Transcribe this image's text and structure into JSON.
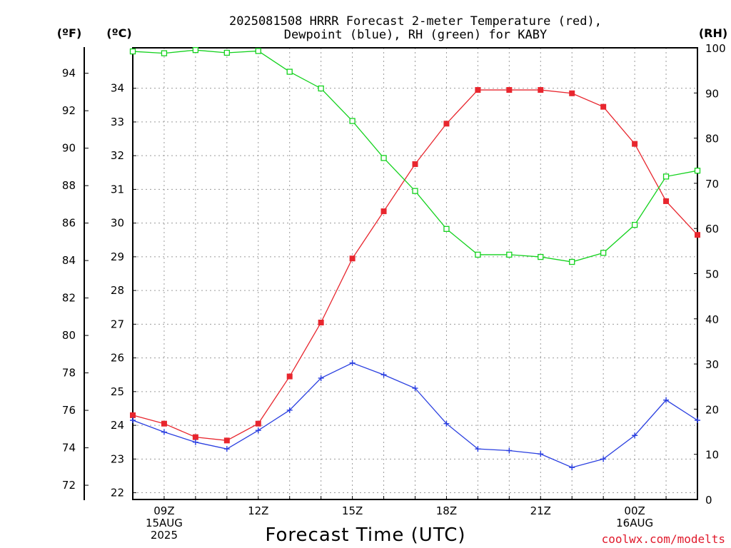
{
  "title": {
    "line1": "2025081508 HRRR Forecast 2-meter Temperature (red),",
    "line2": "Dewpoint (blue), RH (green) for KABY"
  },
  "units": {
    "f": "(ºF)",
    "c": "(ºC)",
    "rh": "(RH)"
  },
  "credit": "coolwx.com/modelts",
  "colors": {
    "temperature": "#e8262e",
    "dewpoint": "#2a3fe0",
    "rh": "#14d21e"
  },
  "chart_data": {
    "type": "line",
    "title": "2025081508 HRRR Forecast 2-meter Temperature (red), Dewpoint (blue), RH (green) for KABY",
    "xlabel": "Forecast Time (UTC)",
    "x": [
      "08Z",
      "09Z",
      "10Z",
      "11Z",
      "12Z",
      "13Z",
      "14Z",
      "15Z",
      "16Z",
      "17Z",
      "18Z",
      "19Z",
      "20Z",
      "21Z",
      "22Z",
      "23Z",
      "00Z",
      "01Z",
      "02Z"
    ],
    "x_ticks": [
      {
        "x": "09Z",
        "lines": [
          "09Z",
          "15AUG",
          "2025"
        ]
      },
      {
        "x": "12Z",
        "lines": [
          "12Z"
        ]
      },
      {
        "x": "15Z",
        "lines": [
          "15Z"
        ]
      },
      {
        "x": "18Z",
        "lines": [
          "18Z"
        ]
      },
      {
        "x": "21Z",
        "lines": [
          "21Z"
        ]
      },
      {
        "x": "00Z",
        "lines": [
          "00Z",
          "16AUG"
        ]
      }
    ],
    "y_left_c": {
      "label": "(ºC)",
      "range": [
        21.8,
        35.2
      ],
      "ticks": [
        22,
        23,
        24,
        25,
        26,
        27,
        28,
        29,
        30,
        31,
        32,
        33,
        34
      ]
    },
    "y_left_f": {
      "label": "(ºF)",
      "ticks": [
        72,
        74,
        76,
        78,
        80,
        82,
        84,
        86,
        88,
        90,
        92,
        94
      ]
    },
    "y_right_rh": {
      "label": "(RH)",
      "range": [
        0,
        100
      ],
      "ticks": [
        0,
        10,
        20,
        30,
        40,
        50,
        60,
        70,
        80,
        90,
        100
      ]
    },
    "grid": true,
    "series": [
      {
        "name": "Temperature",
        "axis": "c",
        "marker": "filled-square",
        "values": [
          24.3,
          24.05,
          23.65,
          23.55,
          24.05,
          25.45,
          27.05,
          28.95,
          30.35,
          31.75,
          32.95,
          33.95,
          33.95,
          33.95,
          33.85,
          33.45,
          32.35,
          30.65,
          29.65
        ]
      },
      {
        "name": "Dewpoint",
        "axis": "c",
        "marker": "plus",
        "values": [
          24.15,
          23.8,
          23.5,
          23.3,
          23.85,
          24.45,
          25.4,
          25.85,
          25.5,
          25.1,
          24.05,
          23.3,
          23.25,
          23.15,
          22.75,
          23.0,
          23.7,
          24.75,
          24.15
        ]
      },
      {
        "name": "RH",
        "axis": "rh",
        "marker": "open-square",
        "values": [
          99.2,
          98.8,
          99.5,
          98.9,
          99.3,
          94.7,
          91.0,
          83.8,
          75.6,
          68.3,
          59.9,
          54.2,
          54.2,
          53.7,
          52.6,
          54.6,
          60.8,
          71.5,
          72.8
        ]
      }
    ]
  }
}
